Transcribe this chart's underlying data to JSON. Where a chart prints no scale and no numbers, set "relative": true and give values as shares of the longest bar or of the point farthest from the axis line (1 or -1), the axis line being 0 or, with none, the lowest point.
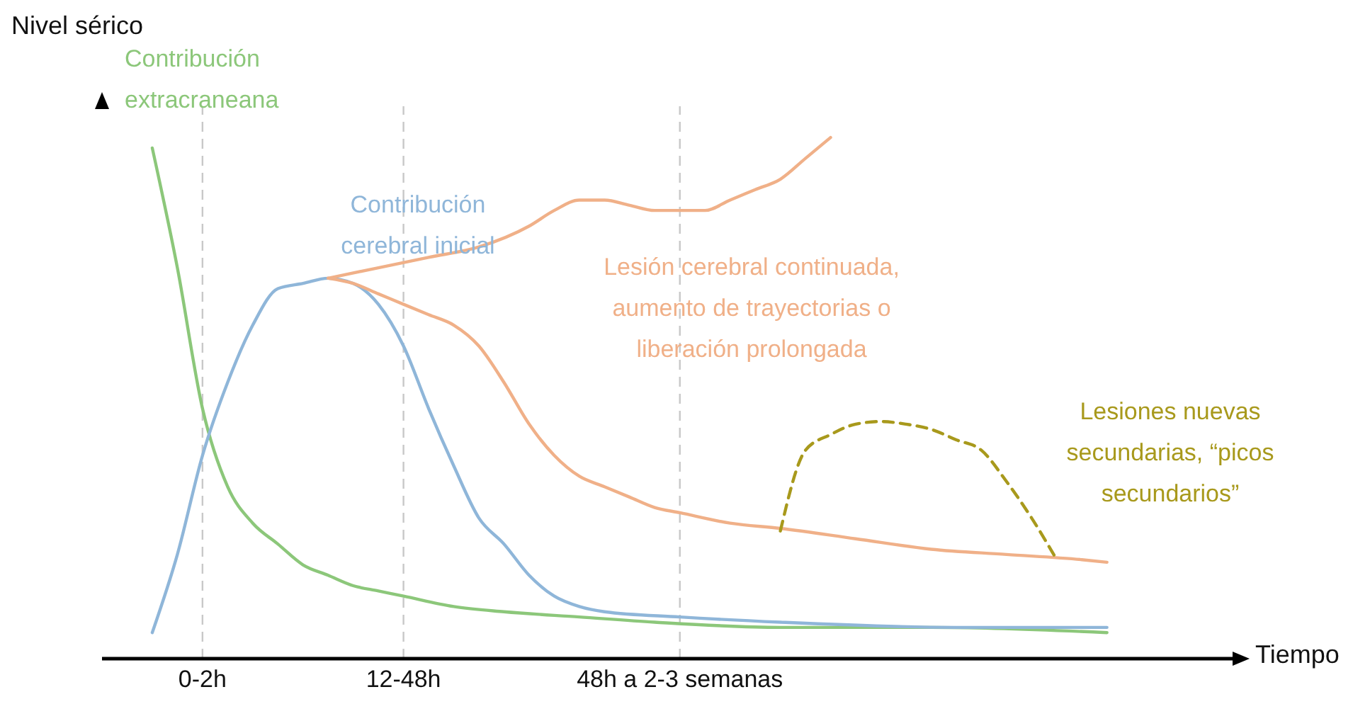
{
  "chart_data": {
    "type": "line",
    "relative": true,
    "xlabel": "Tiempo",
    "ylabel": "Nivel sérico",
    "categories": [
      null,
      null,
      null,
      null,
      "0-2h",
      null,
      null,
      null,
      null,
      null,
      null,
      null,
      "12-48h",
      null,
      null,
      null,
      null,
      null,
      null,
      null,
      null,
      null,
      null,
      "48h a 2-3 semanas",
      null,
      null,
      null,
      null,
      null,
      null,
      null,
      null,
      null,
      null,
      null,
      null,
      null,
      null,
      null,
      null,
      null,
      null,
      null,
      null,
      null,
      null
    ],
    "series": [
      {
        "name": "Contribución extracraneana",
        "color": "#8cc77a",
        "values": [
          null,
          null,
          0.98,
          0.75,
          0.48,
          0.33,
          0.26,
          0.22,
          0.18,
          0.16,
          0.14,
          0.13,
          0.12,
          null,
          0.1,
          null,
          0.09,
          null,
          null,
          0.08,
          null,
          null,
          0.07,
          null,
          null,
          null,
          null,
          0.06,
          null,
          null,
          null,
          null,
          null,
          0.06,
          null,
          null,
          null,
          null,
          null,
          null,
          0.05,
          null,
          null,
          null,
          null,
          null
        ]
      },
      {
        "name": "Contribución cerebral inicial",
        "color": "#8fb6d9",
        "values": [
          null,
          null,
          0.05,
          0.2,
          0.39,
          0.53,
          0.64,
          0.71,
          0.72,
          0.73,
          0.72,
          0.68,
          0.6,
          0.48,
          0.37,
          0.27,
          0.22,
          0.16,
          0.12,
          0.1,
          0.09,
          null,
          null,
          0.08,
          null,
          null,
          null,
          0.07,
          null,
          null,
          null,
          null,
          null,
          null,
          0.06,
          null,
          null,
          null,
          null,
          null,
          0.06,
          null,
          null,
          null,
          null,
          null
        ]
      },
      {
        "name": "Lesión cerebral continuada, aumento de trayectorias o liberación prolongada",
        "color": "#f0b088",
        "values": [
          null,
          null,
          null,
          null,
          null,
          null,
          null,
          null,
          null,
          0.73,
          null,
          0.75,
          null,
          0.77,
          null,
          0.79,
          null,
          0.83,
          0.86,
          0.88,
          0.88,
          0.87,
          0.86,
          0.86,
          0.86,
          0.88,
          0.9,
          0.92,
          0.96,
          1.0,
          null,
          null,
          null,
          null,
          null,
          null,
          null,
          null,
          null,
          null,
          null,
          null,
          null,
          null,
          null,
          null
        ]
      },
      {
        "color": "#f0b088",
        "values": [
          null,
          null,
          null,
          null,
          null,
          null,
          null,
          null,
          null,
          0.73,
          0.72,
          0.7,
          0.68,
          0.66,
          0.64,
          0.6,
          0.53,
          0.45,
          0.39,
          0.35,
          0.33,
          0.31,
          0.29,
          0.28,
          null,
          0.26,
          null,
          0.25,
          null,
          null,
          0.23,
          null,
          null,
          0.21,
          null,
          null,
          0.2,
          null,
          null,
          0.19,
          0.185,
          null,
          null,
          null,
          null,
          null
        ]
      },
      {
        "name": "Lesiones nuevas secundarias, “picos secundarios”",
        "color": "#a8991c",
        "line_style": "dashed",
        "values": [
          null,
          null,
          null,
          null,
          null,
          null,
          null,
          null,
          null,
          null,
          null,
          null,
          null,
          null,
          null,
          null,
          null,
          null,
          null,
          null,
          null,
          null,
          null,
          null,
          null,
          null,
          null,
          0.245,
          0.4,
          0.43,
          0.45,
          0.455,
          0.45,
          0.44,
          0.42,
          0.4,
          0.34,
          0.27,
          0.19,
          null,
          null,
          null,
          null,
          null,
          null,
          null
        ]
      }
    ],
    "ref_lines": [
      {
        "axis": "x",
        "value": "0-2h",
        "color": "#c8c8c8",
        "line_style": "dashed"
      },
      {
        "axis": "x",
        "value": "12-48h",
        "color": "#c8c8c8",
        "line_style": "dashed"
      },
      {
        "axis": "x",
        "value": "48h a 2-3 semanas",
        "color": "#c8c8c8",
        "line_style": "dashed"
      }
    ],
    "grid": false,
    "legend": false,
    "marker": "none"
  }
}
